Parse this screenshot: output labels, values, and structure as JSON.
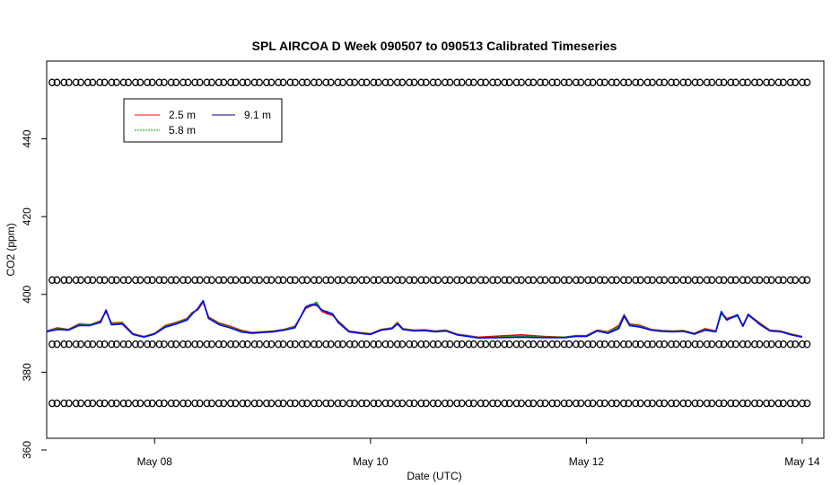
{
  "chart_data": {
    "type": "line",
    "title": "SPL AIRCOA D  Week 090507 to 090513  Calibrated Timeseries",
    "xlabel": "Date (UTC)",
    "ylabel": "CO2 (ppm)",
    "xlim": [
      7.0,
      14.2
    ],
    "ylim": [
      363,
      460
    ],
    "x_ticks": [
      {
        "value": 8,
        "label": "May 08"
      },
      {
        "value": 10,
        "label": "May 10"
      },
      {
        "value": 12,
        "label": "May 12"
      },
      {
        "value": 14,
        "label": "May 14"
      }
    ],
    "y_ticks": [
      {
        "value": 360,
        "label": "360"
      },
      {
        "value": 380,
        "label": "380"
      },
      {
        "value": 400,
        "label": "400"
      },
      {
        "value": 420,
        "label": "420"
      },
      {
        "value": 440,
        "label": "440"
      }
    ],
    "grid": false,
    "legend": {
      "placement": "top-left",
      "entries": [
        {
          "name": "2.5 m",
          "color": "#ff0000"
        },
        {
          "name": "5.8 m",
          "color": "#00aa00"
        },
        {
          "name": "9.1 m",
          "color": "#0000ff"
        }
      ]
    },
    "series": [
      {
        "name": "2.5 m",
        "color": "#ff0000",
        "x": [
          7.0,
          7.1,
          7.2,
          7.3,
          7.4,
          7.5,
          7.55,
          7.6,
          7.7,
          7.8,
          7.9,
          8.0,
          8.1,
          8.2,
          8.3,
          8.35,
          8.4,
          8.45,
          8.5,
          8.6,
          8.7,
          8.8,
          8.9,
          9.0,
          9.1,
          9.2,
          9.3,
          9.4,
          9.45,
          9.5,
          9.55,
          9.6,
          9.65,
          9.7,
          9.8,
          9.9,
          10.0,
          10.1,
          10.2,
          10.25,
          10.3,
          10.4,
          10.5,
          10.6,
          10.7,
          10.8,
          10.9,
          11.0,
          11.2,
          11.4,
          11.6,
          11.8,
          11.9,
          12.0,
          12.1,
          12.2,
          12.3,
          12.35,
          12.4,
          12.5,
          12.6,
          12.7,
          12.8,
          12.9,
          13.0,
          13.1,
          13.2,
          13.25,
          13.3,
          13.4,
          13.45,
          13.5,
          13.6,
          13.7,
          13.8,
          13.9,
          14.0
        ],
        "y": [
          390.6,
          391.4,
          391.0,
          392.4,
          392.2,
          393.2,
          395.6,
          392.6,
          392.8,
          389.9,
          389.2,
          390.0,
          392.0,
          392.8,
          393.8,
          395.4,
          396.0,
          398.0,
          394.2,
          392.6,
          391.8,
          390.8,
          390.2,
          390.4,
          390.6,
          391.0,
          391.8,
          396.4,
          397.0,
          397.6,
          395.6,
          395.0,
          394.6,
          393.2,
          390.6,
          390.2,
          389.9,
          391.0,
          391.4,
          392.8,
          391.2,
          390.8,
          390.9,
          390.6,
          390.8,
          389.8,
          389.4,
          389.0,
          389.3,
          389.6,
          389.2,
          389.0,
          389.4,
          389.4,
          390.8,
          390.4,
          392.0,
          394.8,
          392.4,
          392.0,
          391.0,
          390.7,
          390.6,
          390.7,
          390.0,
          391.2,
          390.6,
          395.2,
          393.8,
          394.6,
          392.0,
          394.8,
          392.8,
          390.8,
          390.6,
          389.8,
          389.2
        ]
      },
      {
        "name": "5.8 m",
        "color": "#00aa00",
        "x": [
          7.0,
          7.1,
          7.2,
          7.3,
          7.4,
          7.5,
          7.55,
          7.6,
          7.7,
          7.8,
          7.9,
          8.0,
          8.1,
          8.2,
          8.3,
          8.35,
          8.4,
          8.45,
          8.5,
          8.6,
          8.7,
          8.8,
          8.9,
          9.0,
          9.1,
          9.2,
          9.3,
          9.4,
          9.45,
          9.5,
          9.55,
          9.6,
          9.65,
          9.7,
          9.8,
          9.9,
          10.0,
          10.1,
          10.2,
          10.25,
          10.3,
          10.4,
          10.5,
          10.6,
          10.7,
          10.8,
          10.9,
          11.0,
          11.2,
          11.4,
          11.6,
          11.8,
          11.9,
          12.0,
          12.1,
          12.2,
          12.3,
          12.35,
          12.4,
          12.5,
          12.6,
          12.7,
          12.8,
          12.9,
          13.0,
          13.1,
          13.2,
          13.25,
          13.3,
          13.4,
          13.45,
          13.5,
          13.6,
          13.7,
          13.8,
          13.9,
          14.0
        ],
        "y": [
          390.5,
          391.2,
          390.9,
          392.2,
          392.1,
          393.0,
          395.8,
          392.4,
          392.6,
          389.8,
          389.1,
          389.9,
          391.8,
          392.6,
          393.6,
          395.2,
          396.2,
          398.2,
          394.0,
          392.4,
          391.6,
          390.6,
          390.1,
          390.3,
          390.5,
          390.9,
          391.6,
          396.6,
          397.2,
          398.0,
          395.8,
          395.6,
          394.8,
          393.0,
          390.5,
          390.1,
          389.8,
          390.9,
          391.3,
          392.6,
          391.1,
          390.7,
          390.8,
          390.5,
          390.7,
          389.7,
          389.3,
          388.9,
          389.0,
          389.2,
          389.0,
          389.0,
          389.3,
          389.3,
          390.7,
          390.2,
          391.6,
          394.6,
          392.2,
          391.8,
          390.9,
          390.6,
          390.5,
          390.6,
          389.9,
          391.0,
          390.5,
          395.0,
          393.6,
          394.4,
          391.9,
          394.6,
          392.6,
          390.7,
          390.5,
          389.7,
          389.1
        ]
      },
      {
        "name": "9.1 m",
        "color": "#0000ff",
        "x": [
          7.0,
          7.1,
          7.2,
          7.3,
          7.4,
          7.5,
          7.55,
          7.6,
          7.7,
          7.8,
          7.9,
          8.0,
          8.1,
          8.2,
          8.3,
          8.35,
          8.4,
          8.45,
          8.5,
          8.6,
          8.7,
          8.8,
          8.9,
          9.0,
          9.1,
          9.2,
          9.3,
          9.4,
          9.45,
          9.5,
          9.55,
          9.6,
          9.65,
          9.7,
          9.8,
          9.9,
          10.0,
          10.1,
          10.2,
          10.25,
          10.3,
          10.4,
          10.5,
          10.6,
          10.7,
          10.8,
          10.9,
          11.0,
          11.2,
          11.4,
          11.6,
          11.8,
          11.9,
          12.0,
          12.1,
          12.2,
          12.3,
          12.35,
          12.4,
          12.5,
          12.6,
          12.7,
          12.8,
          12.9,
          13.0,
          13.1,
          13.2,
          13.25,
          13.3,
          13.4,
          13.45,
          13.5,
          13.6,
          13.7,
          13.8,
          13.9,
          14.0
        ],
        "y": [
          390.4,
          391.0,
          390.8,
          392.0,
          392.0,
          392.8,
          396.0,
          392.2,
          392.4,
          389.7,
          389.0,
          389.8,
          391.6,
          392.4,
          393.4,
          395.0,
          396.4,
          398.4,
          393.8,
          392.2,
          391.4,
          390.4,
          390.0,
          390.2,
          390.4,
          390.8,
          391.4,
          396.8,
          397.4,
          397.2,
          396.0,
          395.4,
          395.0,
          392.8,
          390.4,
          390.0,
          389.7,
          390.8,
          391.2,
          392.4,
          391.0,
          390.6,
          390.7,
          390.4,
          390.6,
          389.6,
          389.2,
          388.8,
          388.9,
          389.0,
          388.9,
          388.9,
          389.2,
          389.2,
          390.6,
          390.0,
          391.2,
          394.4,
          392.0,
          391.6,
          390.8,
          390.5,
          390.4,
          390.5,
          389.8,
          390.8,
          390.4,
          395.6,
          393.4,
          394.8,
          391.8,
          394.9,
          392.4,
          390.6,
          390.4,
          389.6,
          389.0
        ]
      }
    ],
    "marker_rows": [
      {
        "name": "upper-marker-row",
        "y": 454.5,
        "x_start": 7.05,
        "x_end": 14.0,
        "count": 64,
        "glyph": "o"
      },
      {
        "name": "middle-marker-row",
        "y": 403.7,
        "x_start": 7.05,
        "x_end": 14.0,
        "count": 64,
        "glyph": "o"
      },
      {
        "name": "lower-marker-row",
        "y": 387.2,
        "x_start": 7.05,
        "x_end": 14.0,
        "count": 64,
        "glyph": "o"
      },
      {
        "name": "bottom-marker-row",
        "y": 372.0,
        "x_start": 7.05,
        "x_end": 14.0,
        "count": 64,
        "glyph": "o"
      }
    ]
  }
}
